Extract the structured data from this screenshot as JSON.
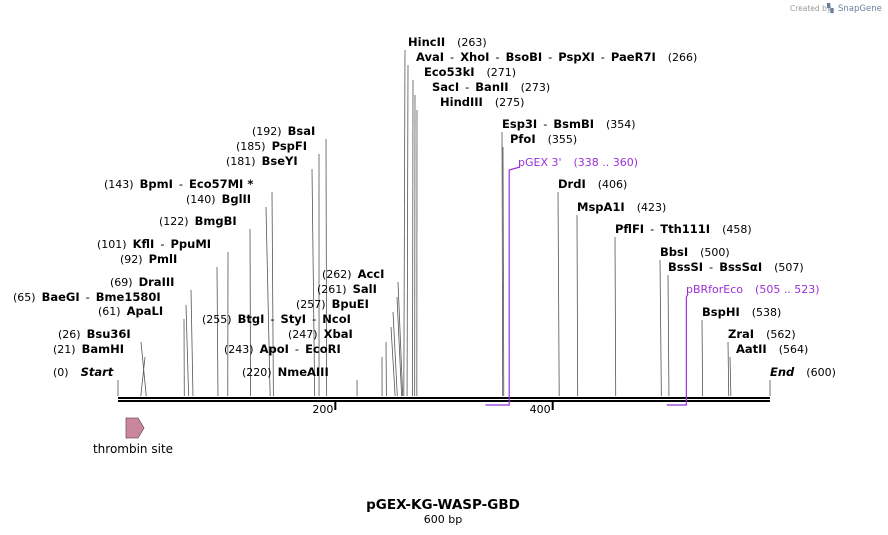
{
  "credit": {
    "prefix": "Created by",
    "brand": "SnapGene"
  },
  "map": {
    "title": "pGEX-KG-WASP-GBD",
    "length_label": "600 bp",
    "length": 600
  },
  "ticks": [
    {
      "value": 200,
      "label": "200"
    },
    {
      "value": 400,
      "label": "400"
    }
  ],
  "enzymes": [
    {
      "pos": "(0)",
      "parts": [
        "Start"
      ],
      "site": 0,
      "emph": true
    },
    {
      "pos": "(21)",
      "parts": [
        "BamHI"
      ],
      "site": 21
    },
    {
      "pos": "(26)",
      "parts": [
        "Bsu36I"
      ],
      "site": 26
    },
    {
      "pos": "(61)",
      "parts": [
        "ApaLI"
      ],
      "site": 61
    },
    {
      "pos": "(65)",
      "parts": [
        "BaeGI",
        "Bme1580I"
      ],
      "site": 65
    },
    {
      "pos": "(69)",
      "parts": [
        "DraIII"
      ],
      "site": 69
    },
    {
      "pos": "(92)",
      "parts": [
        "PmlI"
      ],
      "site": 92
    },
    {
      "pos": "(101)",
      "parts": [
        "KflI",
        "PpuMI"
      ],
      "site": 101
    },
    {
      "pos": "(122)",
      "parts": [
        "BmgBI"
      ],
      "site": 122
    },
    {
      "pos": "(140)",
      "parts": [
        "BglII"
      ],
      "site": 140
    },
    {
      "pos": "(143)",
      "parts": [
        "BpmI",
        "Eco57MI *"
      ],
      "site": 143
    },
    {
      "pos": "(181)",
      "parts": [
        "BseYI"
      ],
      "site": 181
    },
    {
      "pos": "(185)",
      "parts": [
        "PspFI"
      ],
      "site": 185
    },
    {
      "pos": "(192)",
      "parts": [
        "BsaI"
      ],
      "site": 192
    },
    {
      "pos": "(220)",
      "parts": [
        "NmeAIII"
      ],
      "site": 220
    },
    {
      "pos": "(243)",
      "parts": [
        "ApoI",
        "EcoRI"
      ],
      "site": 243
    },
    {
      "pos": "(247)",
      "parts": [
        "XbaI"
      ],
      "site": 247
    },
    {
      "pos": "(255)",
      "parts": [
        "BtgI",
        "StyI",
        "NcoI"
      ],
      "site": 255
    },
    {
      "pos": "(257)",
      "parts": [
        "BpuEI"
      ],
      "site": 257
    },
    {
      "pos": "(261)",
      "parts": [
        "SalI"
      ],
      "site": 261
    },
    {
      "pos": "(262)",
      "parts": [
        "AccI"
      ],
      "site": 262
    },
    {
      "pos": "(263)",
      "parts": [
        "HincII"
      ],
      "site": 263
    },
    {
      "pos": "(266)",
      "parts": [
        "AvaI",
        "XhoI",
        "BsoBI",
        "PspXI",
        "PaeR7I"
      ],
      "site": 266
    },
    {
      "pos": "(271)",
      "parts": [
        "Eco53kI"
      ],
      "site": 271
    },
    {
      "pos": "(273)",
      "parts": [
        "SacI",
        "BanII"
      ],
      "site": 273
    },
    {
      "pos": "(275)",
      "parts": [
        "HindIII"
      ],
      "site": 275
    },
    {
      "pos": "(354)",
      "parts": [
        "Esp3I",
        "BsmBI"
      ],
      "site": 354
    },
    {
      "pos": "(355)",
      "parts": [
        "PfoI"
      ],
      "site": 355
    },
    {
      "pos": "(406)",
      "parts": [
        "DrdI"
      ],
      "site": 406
    },
    {
      "pos": "(423)",
      "parts": [
        "MspA1I"
      ],
      "site": 423
    },
    {
      "pos": "(458)",
      "parts": [
        "PflFI",
        "Tth111I"
      ],
      "site": 458
    },
    {
      "pos": "(500)",
      "parts": [
        "BbsI"
      ],
      "site": 500
    },
    {
      "pos": "(507)",
      "parts": [
        "BssSI",
        "BssSαI"
      ],
      "site": 507
    },
    {
      "pos": "(538)",
      "parts": [
        "BspHI"
      ],
      "site": 538
    },
    {
      "pos": "(562)",
      "parts": [
        "ZraI"
      ],
      "site": 562
    },
    {
      "pos": "(564)",
      "parts": [
        "AatII"
      ],
      "site": 564
    },
    {
      "pos": "(600)",
      "parts": [
        "End"
      ],
      "site": 600,
      "emph": true
    }
  ],
  "primers": [
    {
      "name": "pGEX 3'",
      "range": "(338 .. 360)",
      "start": 338,
      "end": 360,
      "strand": "reverse",
      "color": "#9b30d9"
    },
    {
      "name": "pBRforEco",
      "range": "(505 .. 523)",
      "start": 505,
      "end": 523,
      "strand": "reverse",
      "color": "#9b30d9"
    }
  ],
  "features": [
    {
      "name": "thrombin site",
      "start": 7,
      "end": 25,
      "color": "#c9879e"
    }
  ]
}
